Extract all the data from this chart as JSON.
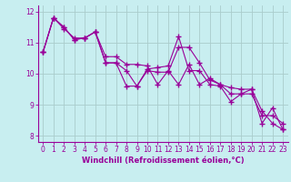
{
  "title": "",
  "xlabel": "Windchill (Refroidissement éolien,°C)",
  "background_color": "#c8eef0",
  "line_color": "#990099",
  "grid_color": "#aacccc",
  "x": [
    0,
    1,
    2,
    3,
    4,
    5,
    6,
    7,
    8,
    9,
    10,
    11,
    12,
    13,
    14,
    15,
    16,
    17,
    18,
    19,
    20,
    21,
    22,
    23
  ],
  "line1": [
    10.7,
    11.8,
    11.5,
    11.1,
    11.15,
    11.35,
    10.35,
    10.35,
    10.1,
    9.6,
    10.15,
    10.2,
    10.25,
    11.2,
    10.1,
    10.1,
    9.65,
    9.6,
    9.1,
    9.35,
    9.5,
    8.4,
    8.9,
    8.2
  ],
  "line2": [
    10.7,
    11.8,
    11.5,
    11.1,
    11.15,
    11.35,
    10.35,
    10.35,
    9.6,
    9.6,
    10.1,
    10.05,
    10.05,
    10.85,
    10.85,
    10.35,
    9.8,
    9.65,
    9.55,
    9.5,
    9.5,
    8.8,
    8.4,
    8.2
  ],
  "line3": [
    10.7,
    11.8,
    11.45,
    11.15,
    11.15,
    11.35,
    10.55,
    10.55,
    10.3,
    10.3,
    10.25,
    9.65,
    10.1,
    9.65,
    10.3,
    9.65,
    9.85,
    9.65,
    9.35,
    9.35,
    9.35,
    8.65,
    8.65,
    8.4
  ],
  "ylim": [
    7.8,
    12.2
  ],
  "xlim": [
    -0.5,
    23.5
  ],
  "yticks": [
    8,
    9,
    10,
    11,
    12
  ],
  "xticks": [
    0,
    1,
    2,
    3,
    4,
    5,
    6,
    7,
    8,
    9,
    10,
    11,
    12,
    13,
    14,
    15,
    16,
    17,
    18,
    19,
    20,
    21,
    22,
    23
  ],
  "marker": "+",
  "tick_fontsize": 5.5,
  "xlabel_fontsize": 6.0,
  "linewidth": 0.8,
  "markersize": 4,
  "markeredgewidth": 1.0
}
